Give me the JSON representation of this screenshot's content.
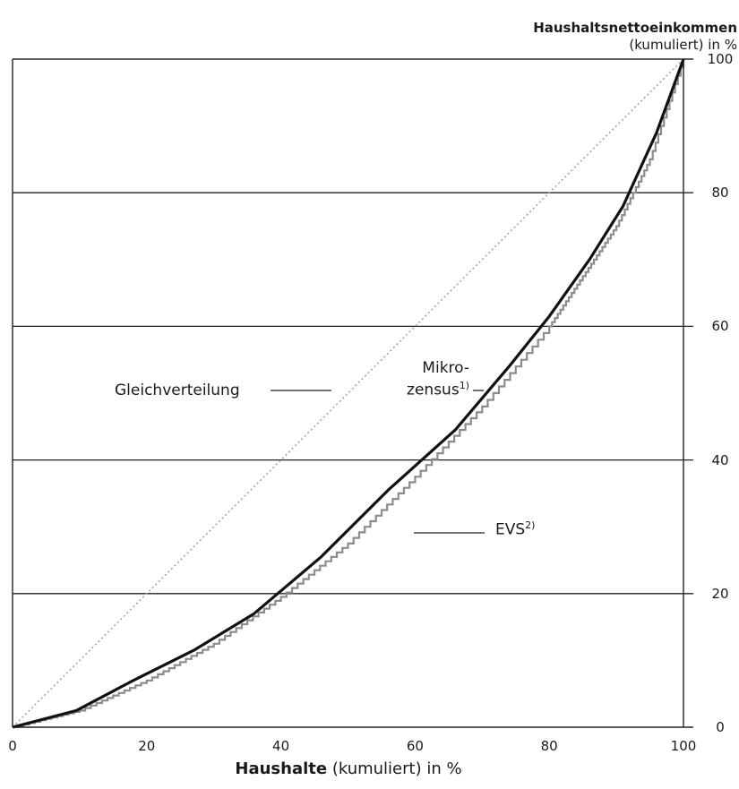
{
  "chart_data": {
    "type": "line",
    "ylabel_bold": "Haushaltsnettoeinkommen",
    "ylabel_rest": "(kumuliert) in %",
    "xlabel_bold": "Haushalte",
    "xlabel_rest": " (kumuliert) in %",
    "xlim": [
      0,
      100
    ],
    "ylim": [
      0,
      100
    ],
    "x_ticks": [
      "0",
      "20",
      "40",
      "60",
      "80",
      "100"
    ],
    "y_ticks": [
      "0",
      "20",
      "40",
      "60",
      "80",
      "100"
    ],
    "grid": "horizontal",
    "series": [
      {
        "name": "Gleichverteilung",
        "style": "dotted",
        "color": "#9a9a9a",
        "x": [
          0,
          100
        ],
        "y": [
          0,
          100
        ]
      },
      {
        "name": "Mikrozensus",
        "style": "solid-thick",
        "color": "#111111",
        "x": [
          0,
          9.5,
          18,
          27,
          36,
          46,
          56,
          66,
          74,
          80,
          86,
          91,
          96,
          100
        ],
        "y": [
          0,
          2.5,
          7,
          11.5,
          17,
          25.5,
          35.5,
          44.5,
          54,
          61.5,
          70,
          78,
          89,
          100
        ]
      },
      {
        "name": "EVS",
        "style": "solid-stepped",
        "color": "#8c8c8c",
        "x": [
          0,
          10,
          20,
          30,
          40,
          50,
          60,
          70,
          80,
          85,
          90,
          95,
          100
        ],
        "y": [
          0,
          2.5,
          7,
          12.5,
          19.5,
          27.5,
          37.5,
          48,
          60,
          67.5,
          75,
          85,
          100
        ]
      }
    ],
    "annotations": {
      "gleich": "Gleichverteilung",
      "mikro_line1": "Mikro-",
      "mikro_line2": "zensus",
      "mikro_sup": "1)",
      "evs": "EVS",
      "evs_sup": "2)"
    }
  }
}
